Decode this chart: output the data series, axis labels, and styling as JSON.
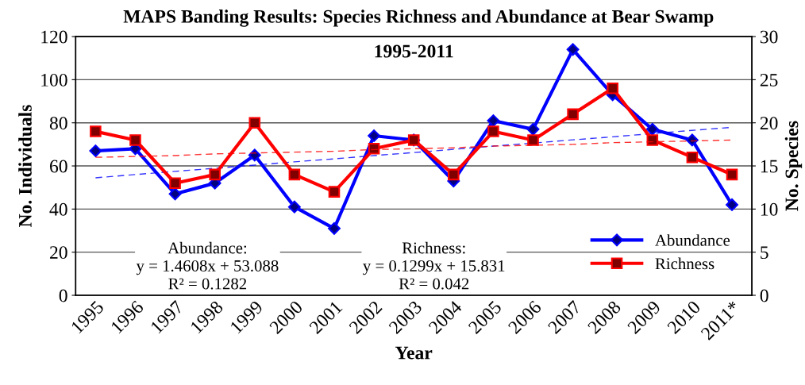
{
  "chart_data": {
    "type": "line",
    "title": "MAPS Banding Results: Species Richness and Abundance at Bear Swamp",
    "subtitle": "1995-2011",
    "xlabel": "Year",
    "ylabel": "No. Individuals",
    "y2label": "No. Species",
    "categories": [
      "1995",
      "1996",
      "1997",
      "1998",
      "1999",
      "2000",
      "2001",
      "2002",
      "2003",
      "2004",
      "2005",
      "2006",
      "2007",
      "2008",
      "2009",
      "2010",
      "2011*"
    ],
    "series": [
      {
        "name": "Abundance",
        "color": "#0000ff",
        "marker": "diamond",
        "values": [
          67,
          68,
          47,
          52,
          65,
          41,
          31,
          74,
          72,
          53,
          81,
          77,
          114,
          93,
          77,
          72,
          42
        ]
      },
      {
        "name": "Richness",
        "color": "#ff0000",
        "marker": "square",
        "axis": "y2",
        "values": [
          19,
          18,
          13,
          14,
          20,
          14,
          12,
          17,
          18,
          14,
          19,
          18,
          21,
          24,
          18,
          16,
          14
        ]
      },
      {
        "color": "#0000ff",
        "marker": "none",
        "line_style": "dashed",
        "values": [
          54.5,
          56.0,
          57.5,
          58.9,
          60.4,
          61.9,
          63.3,
          64.8,
          66.2,
          67.7,
          69.2,
          70.6,
          72.1,
          73.5,
          75.0,
          76.5,
          77.9
        ]
      },
      {
        "color": "#ff0000",
        "marker": "none",
        "line_style": "dashed",
        "axis": "y2",
        "values": [
          16.0,
          16.1,
          16.2,
          16.4,
          16.5,
          16.6,
          16.7,
          16.9,
          17.0,
          17.1,
          17.3,
          17.4,
          17.5,
          17.7,
          17.8,
          17.9,
          18.0
        ]
      }
    ],
    "ylim": [
      0,
      120
    ],
    "yticks": [
      0,
      20,
      40,
      60,
      80,
      100,
      120
    ],
    "y2lim": [
      0,
      30
    ],
    "y2ticks": [
      0,
      5,
      10,
      15,
      20,
      25,
      30
    ],
    "grid": "y",
    "legend": "bottom right",
    "annotations": [
      "Abundance:\ny = 1.4608x + 53.088\nR² = 0.1282",
      "Richness:\ny = 0.1299x + 15.831\nR² = 0.042"
    ]
  }
}
